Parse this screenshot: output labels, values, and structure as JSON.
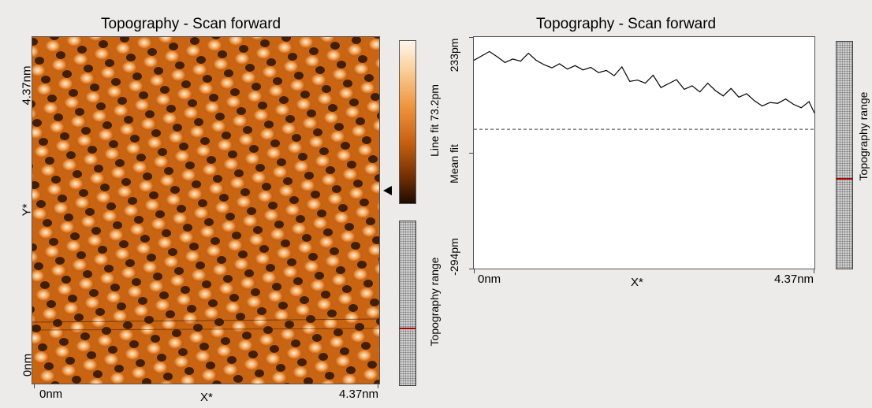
{
  "left_panel": {
    "title": "Topography - Scan forward",
    "x_axis": {
      "label": "X*",
      "min_label": "0nm",
      "max_label": "4.37nm"
    },
    "y_axis": {
      "label": "Y*",
      "min_label": "0nm",
      "max_label": "4.37nm"
    },
    "colorbar": {
      "label": "Line fit 73.2pm"
    },
    "range_bar": {
      "label": "Topography range",
      "marker_fraction": 0.65
    }
  },
  "right_panel": {
    "title": "Topography - Scan forward",
    "x_axis": {
      "label": "X*",
      "min_label": "0nm",
      "max_label": "4.37nm"
    },
    "y_axis": {
      "label": "Mean fit",
      "top_label": "233pm",
      "bottom_label": "-294pm"
    },
    "range_bar": {
      "label": "Topography range",
      "marker_fraction": 0.6
    }
  },
  "colors": {
    "background": "#ecebea",
    "topo_dark": "#2a1200",
    "topo_mid": "#c55f10",
    "topo_light": "#fff0dc",
    "profile_line": "#000000",
    "range_marker": "#b00000"
  },
  "chart_data": {
    "type": "line",
    "title": "Topography - Scan forward",
    "xlabel": "X*",
    "ylabel": "Mean fit",
    "xlim": [
      0,
      4.37
    ],
    "ylim": [
      -294,
      233
    ],
    "x": [
      0.0,
      0.1,
      0.2,
      0.3,
      0.4,
      0.5,
      0.6,
      0.7,
      0.8,
      0.9,
      1.0,
      1.1,
      1.2,
      1.3,
      1.4,
      1.5,
      1.6,
      1.7,
      1.8,
      1.9,
      2.0,
      2.1,
      2.2,
      2.3,
      2.4,
      2.5,
      2.6,
      2.7,
      2.8,
      2.9,
      3.0,
      3.1,
      3.2,
      3.3,
      3.4,
      3.5,
      3.6,
      3.7,
      3.8,
      3.9,
      4.0,
      4.1,
      4.2,
      4.3,
      4.37
    ],
    "y": [
      180,
      190,
      200,
      188,
      175,
      183,
      178,
      196,
      180,
      170,
      163,
      172,
      160,
      168,
      158,
      164,
      152,
      157,
      145,
      165,
      132,
      135,
      128,
      146,
      118,
      127,
      136,
      114,
      122,
      108,
      128,
      111,
      99,
      116,
      96,
      104,
      88,
      76,
      84,
      82,
      92,
      80,
      72,
      86,
      60
    ],
    "baseline": 23,
    "grid": false
  }
}
